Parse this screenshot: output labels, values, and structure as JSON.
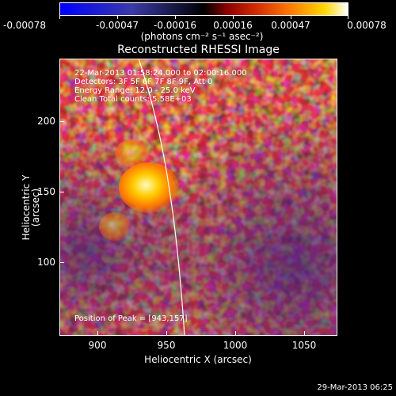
{
  "colorbar": {
    "ticks": [
      "-0.00078",
      "-0.00047",
      "-0.00016",
      "0.00016",
      "0.00047",
      "0.00078"
    ],
    "units": "(photons cm⁻² s⁻¹ asec⁻²)"
  },
  "plot": {
    "title": "Reconstructed RHESSI Image",
    "xlabel": "Heliocentric X (arcsec)",
    "ylabel": "Heliocentric Y (arcsec)",
    "xticks": [
      "900",
      "950",
      "1000",
      "1050"
    ],
    "yticks": [
      "200",
      "150",
      "100"
    ],
    "annotations": {
      "time": "22-Mar-2013 01:58:24.000 to 02:00:16.000",
      "detectors": "Detectors: 3F 5F 6F 7F 8F 9F, Att 0",
      "energy": "Energy Range: 12.0 - 25.0 keV",
      "clean": "Clean    Total counts: 5.58E+03",
      "peak": "Position of Peak = [943,157]"
    }
  },
  "footer": {
    "timestamp": "29-Mar-2013 06:25"
  },
  "colors": {
    "background": "#000000",
    "limb_line": "#ffffff"
  }
}
